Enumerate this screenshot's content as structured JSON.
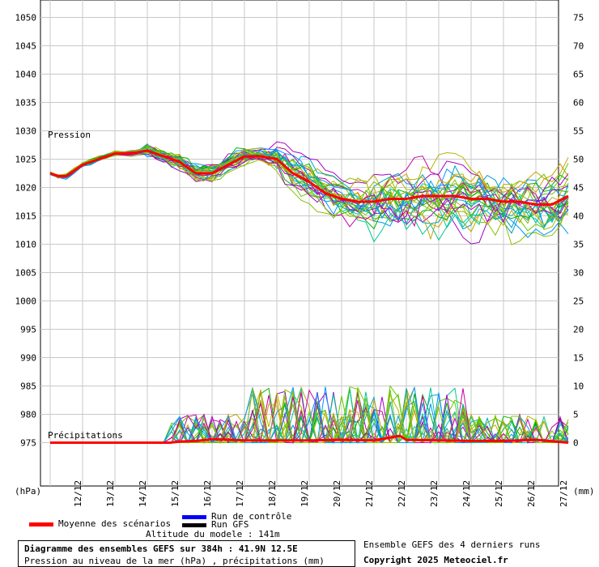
{
  "chart_data": {
    "type": "line",
    "title": "Diagramme des ensembles GEFS sur 384h : 41.9N 12.5E",
    "subtitle": "Pression au niveau de la mer (hPa) , précipitations (mm)",
    "left_axis": {
      "unit": "(hPa)",
      "ticks": [
        1050,
        1045,
        1040,
        1035,
        1030,
        1025,
        1020,
        1015,
        1010,
        1005,
        1000,
        995,
        990,
        985,
        980,
        975
      ],
      "ylim": [
        970,
        1052
      ]
    },
    "right_axis": {
      "unit": "(mm)",
      "ticks": [
        75,
        70,
        65,
        60,
        55,
        50,
        45,
        40,
        35,
        30,
        25,
        20,
        15,
        10,
        5,
        0
      ]
    },
    "x_ticks": [
      "12/12",
      "13/12",
      "14/12",
      "15/12",
      "16/12",
      "17/12",
      "18/12",
      "19/12",
      "20/12",
      "21/12",
      "22/12",
      "23/12",
      "24/12",
      "25/12",
      "26/12",
      "27/12"
    ],
    "annotations": {
      "pressure": "Pression",
      "precip": "Précipitations"
    },
    "grid": true,
    "series": [
      {
        "name": "Moyenne des scénarios",
        "color": "#ff0000",
        "x": [
          0,
          0.25,
          0.5,
          1,
          1.5,
          2,
          2.5,
          3,
          3.5,
          4,
          4.5,
          5,
          5.5,
          6,
          6.5,
          7,
          7.5,
          8,
          8.5,
          9,
          9.5,
          10,
          10.5,
          11,
          11.5,
          12,
          12.5,
          13,
          13.5,
          14,
          14.5,
          15,
          15.5,
          16
        ],
        "values": [
          1022.5,
          1022,
          1022,
          1024,
          1025,
          1026,
          1026,
          1026.5,
          1025.5,
          1024.5,
          1022.5,
          1022.5,
          1024,
          1025.5,
          1025.5,
          1025,
          1022.5,
          1021,
          1019,
          1018,
          1017.5,
          1017.5,
          1018,
          1018,
          1018.5,
          1018.5,
          1018.5,
          1018,
          1018,
          1017.5,
          1017.5,
          1017,
          1017,
          1018.5
        ]
      },
      {
        "name": "Moyenne des scénarios - précipitations (mm)",
        "color": "#ff0000",
        "x": [
          0,
          1,
          2,
          3,
          3.7,
          4,
          4.5,
          5,
          6,
          7,
          8,
          9,
          10,
          10.8,
          11,
          12,
          13,
          14,
          15,
          16
        ],
        "values": [
          0,
          0,
          0,
          0,
          0,
          0.2,
          0.3,
          0.6,
          0.4,
          0.4,
          0.4,
          0.5,
          0.4,
          1.2,
          0.5,
          0.4,
          0.3,
          0.3,
          0.5,
          0
        ]
      }
    ],
    "legend": [
      {
        "label": "Moyenne des scénarios",
        "color": "#ff0000"
      },
      {
        "label": "Run de contrôle",
        "color": "#0000ff"
      },
      {
        "label": "Run GFS",
        "color": "#000000"
      }
    ]
  },
  "altitude": "Altitude du modele : 141m",
  "footer": {
    "ensemble_note": "Ensemble GEFS des 4 derniers runs",
    "copyright": "Copyright 2025 Meteociel.fr"
  }
}
